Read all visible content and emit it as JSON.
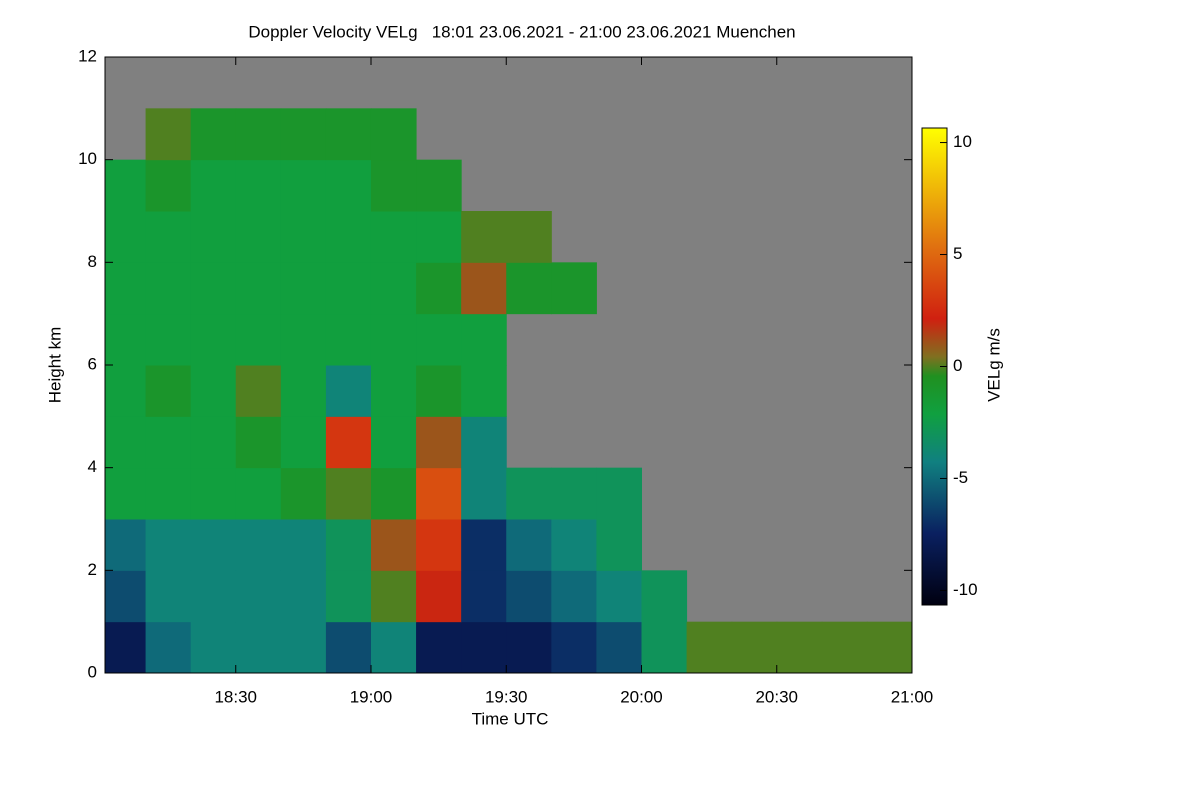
{
  "chart_data": {
    "type": "heatmap",
    "title": "Doppler Velocity VELg   18:01 23.06.2021 - 21:00 23.06.2021 Muenchen",
    "x_label": "Time UTC",
    "y_label": "Height km",
    "colorbar_label": "VELg m/s",
    "x_edges": [
      1081,
      1090,
      1100,
      1110,
      1120,
      1130,
      1140,
      1150,
      1160,
      1170,
      1180,
      1190,
      1200,
      1210,
      1220,
      1230,
      1240,
      1250,
      1260
    ],
    "y_edges": [
      0,
      1,
      2,
      3,
      4,
      5,
      6,
      7,
      8,
      9,
      10,
      11,
      12
    ],
    "values": [
      [
        -8,
        -5,
        -4,
        -4,
        -4,
        -6,
        -4,
        -8,
        -8,
        -8,
        -7,
        -6,
        -3,
        0,
        0,
        0,
        0,
        0
      ],
      [
        -6,
        -4,
        -4,
        -4,
        -4,
        -3,
        0,
        2,
        -7,
        -6,
        -5,
        -4,
        -3,
        null,
        null,
        null,
        null,
        null
      ],
      [
        -5,
        -4,
        -4,
        -4,
        -4,
        -3,
        1,
        3,
        -7,
        -5,
        -4,
        -3,
        null,
        null,
        null,
        null,
        null,
        null
      ],
      [
        -2,
        -2,
        -2,
        -2,
        -1,
        0,
        -1,
        4,
        -4,
        -3,
        -3,
        -3,
        null,
        null,
        null,
        null,
        null,
        null
      ],
      [
        -2,
        -2,
        -2,
        -1,
        -2,
        3,
        -2,
        1,
        -4,
        null,
        null,
        null,
        null,
        null,
        null,
        null,
        null,
        null
      ],
      [
        -2,
        -1,
        -2,
        0,
        -2,
        -4,
        -2,
        -1,
        -2,
        null,
        null,
        null,
        null,
        null,
        null,
        null,
        null,
        null
      ],
      [
        -2,
        -2,
        -2,
        -2,
        -2,
        -2,
        -2,
        -2,
        -2,
        null,
        null,
        null,
        null,
        null,
        null,
        null,
        null,
        null
      ],
      [
        -2,
        -2,
        -2,
        -2,
        -2,
        -2,
        -2,
        -1,
        1,
        -1,
        -1,
        null,
        null,
        null,
        null,
        null,
        null,
        null
      ],
      [
        -2,
        -2,
        -2,
        -2,
        -2,
        -2,
        -2,
        -2,
        0,
        0,
        null,
        null,
        null,
        null,
        null,
        null,
        null,
        null
      ],
      [
        -2,
        -1,
        -2,
        -2,
        -2,
        -2,
        -1,
        -1,
        null,
        null,
        null,
        null,
        null,
        null,
        null,
        null,
        null,
        null
      ],
      [
        null,
        0,
        -1,
        -1,
        -1,
        -1,
        -1,
        null,
        null,
        null,
        null,
        null,
        null,
        null,
        null,
        null,
        null,
        null
      ],
      [
        null,
        null,
        null,
        null,
        null,
        null,
        null,
        null,
        null,
        null,
        null,
        null,
        null,
        null,
        null,
        null,
        null,
        null
      ]
    ],
    "xlim": [
      1081,
      1260
    ],
    "ylim": [
      0,
      12
    ],
    "xticks": [
      {
        "value": 1110,
        "label": "18:30"
      },
      {
        "value": 1140,
        "label": "19:00"
      },
      {
        "value": 1170,
        "label": "19:30"
      },
      {
        "value": 1200,
        "label": "20:00"
      },
      {
        "value": 1230,
        "label": "20:30"
      },
      {
        "value": 1260,
        "label": "21:00"
      }
    ],
    "yticks": [
      0,
      2,
      4,
      6,
      8,
      10,
      12
    ],
    "clim": [
      -10.65,
      10.65
    ],
    "cticks": [
      -10,
      -5,
      0,
      5,
      10
    ],
    "background": "#808080"
  }
}
